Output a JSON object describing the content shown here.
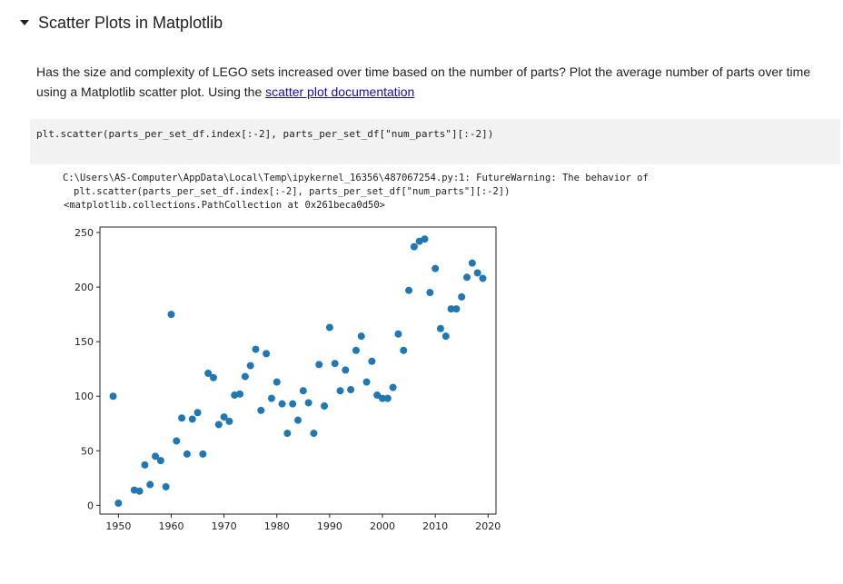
{
  "section": {
    "title": "Scatter Plots in Matplotlib"
  },
  "markdown": {
    "text_before_link": "Has the size and complexity of LEGO sets increased over time based on the number of parts? Plot the average number of parts over time using a Matplotlib scatter plot. Using the ",
    "link_text": "scatter plot documentation"
  },
  "code": {
    "source": "plt.scatter(parts_per_set_df.index[:-2], parts_per_set_df[\"num_parts\"][:-2])"
  },
  "output": {
    "warning_line1": "C:\\Users\\AS-Computer\\AppData\\Local\\Temp\\ipykernel_16356\\487067254.py:1: FutureWarning: The behavior of",
    "warning_line2": "plt.scatter(parts_per_set_df.index[:-2], parts_per_set_df[\"num_parts\"][:-2])",
    "repr": "<matplotlib.collections.PathCollection at 0x261beca0d50>"
  },
  "chart_data": {
    "type": "scatter",
    "title": "",
    "xlabel": "",
    "ylabel": "",
    "xlim": [
      1946.5,
      2021.5
    ],
    "ylim": [
      -8,
      255
    ],
    "xticks": [
      1950,
      1960,
      1970,
      1980,
      1990,
      2000,
      2010,
      2020
    ],
    "yticks": [
      0,
      50,
      100,
      150,
      200,
      250
    ],
    "color": "#1f77b4",
    "points": [
      [
        1949,
        100
      ],
      [
        1950,
        2
      ],
      [
        1953,
        14
      ],
      [
        1954,
        13
      ],
      [
        1955,
        37
      ],
      [
        1956,
        19
      ],
      [
        1957,
        45
      ],
      [
        1958,
        41
      ],
      [
        1959,
        17
      ],
      [
        1960,
        175
      ],
      [
        1961,
        59
      ],
      [
        1962,
        80
      ],
      [
        1963,
        47
      ],
      [
        1964,
        79
      ],
      [
        1965,
        85
      ],
      [
        1966,
        47
      ],
      [
        1967,
        121
      ],
      [
        1968,
        117
      ],
      [
        1969,
        74
      ],
      [
        1970,
        81
      ],
      [
        1971,
        77
      ],
      [
        1972,
        101
      ],
      [
        1973,
        102
      ],
      [
        1974,
        118
      ],
      [
        1975,
        128
      ],
      [
        1976,
        143
      ],
      [
        1977,
        87
      ],
      [
        1978,
        139
      ],
      [
        1979,
        98
      ],
      [
        1980,
        113
      ],
      [
        1981,
        93
      ],
      [
        1982,
        66
      ],
      [
        1983,
        93
      ],
      [
        1984,
        78
      ],
      [
        1985,
        105
      ],
      [
        1986,
        94
      ],
      [
        1987,
        66
      ],
      [
        1988,
        129
      ],
      [
        1989,
        91
      ],
      [
        1990,
        163
      ],
      [
        1991,
        130
      ],
      [
        1992,
        105
      ],
      [
        1993,
        124
      ],
      [
        1994,
        106
      ],
      [
        1995,
        142
      ],
      [
        1996,
        155
      ],
      [
        1997,
        113
      ],
      [
        1998,
        132
      ],
      [
        1999,
        101
      ],
      [
        2000,
        98
      ],
      [
        2001,
        98
      ],
      [
        2002,
        108
      ],
      [
        2003,
        157
      ],
      [
        2004,
        142
      ],
      [
        2005,
        197
      ],
      [
        2006,
        237
      ],
      [
        2007,
        242
      ],
      [
        2008,
        244
      ],
      [
        2009,
        195
      ],
      [
        2010,
        217
      ],
      [
        2011,
        162
      ],
      [
        2012,
        155
      ],
      [
        2013,
        180
      ],
      [
        2014,
        180
      ],
      [
        2015,
        191
      ],
      [
        2016,
        209
      ],
      [
        2017,
        222
      ],
      [
        2018,
        213
      ],
      [
        2019,
        208
      ]
    ]
  }
}
